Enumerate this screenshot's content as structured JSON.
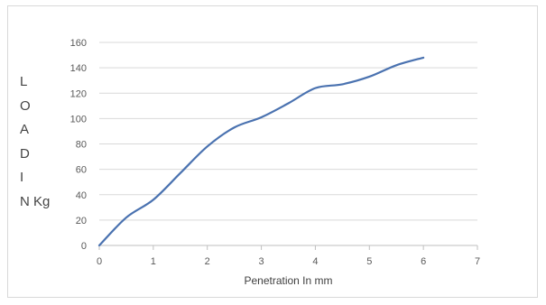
{
  "chart_data": {
    "type": "line",
    "title": "",
    "xlabel": "Penetration In mm",
    "ylabel_lines": [
      "L",
      "O",
      "A",
      "D",
      "I",
      "N Kg"
    ],
    "xlim": [
      0,
      7
    ],
    "ylim": [
      0,
      160
    ],
    "x_ticks": [
      "0",
      "1",
      "2",
      "3",
      "4",
      "5",
      "6",
      "7"
    ],
    "y_ticks": [
      "0",
      "20",
      "40",
      "60",
      "80",
      "100",
      "120",
      "140",
      "160"
    ],
    "grid": "horizontal",
    "series": [
      {
        "color": "#4a72b0",
        "x": [
          0,
          0.5,
          1,
          1.5,
          2,
          2.5,
          3,
          3.5,
          4,
          4.5,
          5,
          5.5,
          6
        ],
        "y": [
          0,
          22,
          36,
          57,
          78,
          93,
          101,
          112,
          124,
          127,
          133,
          142,
          148
        ]
      }
    ]
  }
}
